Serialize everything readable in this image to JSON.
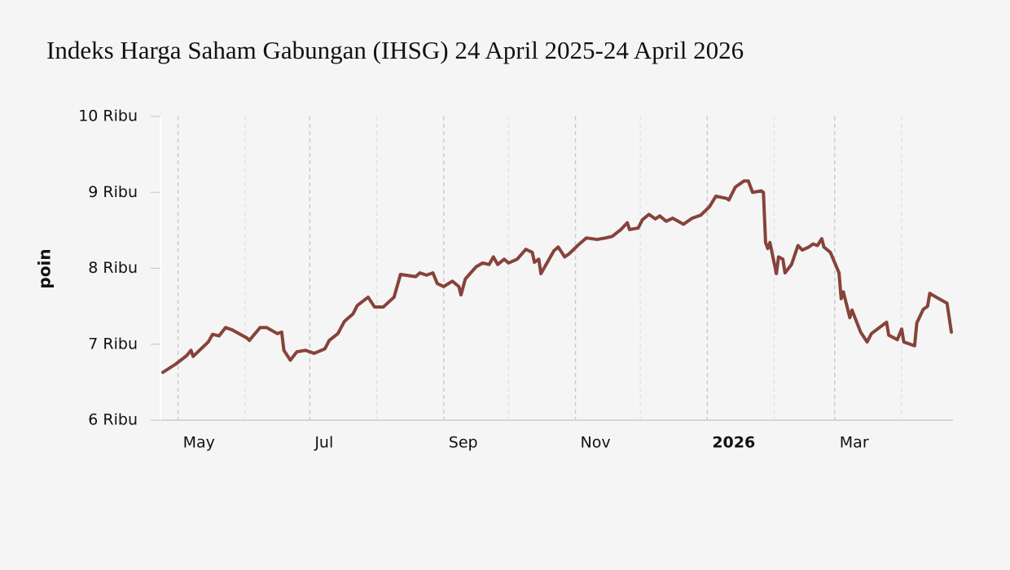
{
  "chart_data": {
    "type": "line",
    "title": "Indeks Harga Saham Gabungan (IHSG) 24 April 2025-24 April 2026",
    "y_label": "poin",
    "color": "#86433a",
    "xlim": [
      "2025-04-24",
      "2026-04-24"
    ],
    "xticks": [
      {
        "value": "2025-05-01",
        "label": "May"
      },
      {
        "value": "2025-07-01",
        "label": "Jul"
      },
      {
        "value": "2025-09-01",
        "label": "Sep"
      },
      {
        "value": "2025-11-01",
        "label": "Nov"
      },
      {
        "value": "2026-01-01",
        "label": "2026"
      },
      {
        "value": "2026-03-01",
        "label": "Mar"
      }
    ],
    "xminorticks": [
      "2025-06-01",
      "2025-08-01",
      "2025-10-01",
      "2025-12-01",
      "2026-02-01",
      "2026-04-01"
    ],
    "ylim": [
      6000,
      10000
    ],
    "yticks": [
      {
        "value": 6000,
        "label": "6 Ribu"
      },
      {
        "value": 7000,
        "label": "7 Ribu"
      },
      {
        "value": 8000,
        "label": "8 Ribu"
      },
      {
        "value": 9000,
        "label": "9 Ribu"
      },
      {
        "value": 10000,
        "label": "10 Ribu"
      }
    ],
    "x": [
      "2025-04-24",
      "2025-04-30",
      "2025-05-05",
      "2025-05-07",
      "2025-05-08",
      "2025-05-15",
      "2025-05-17",
      "2025-05-20",
      "2025-05-23",
      "2025-05-26",
      "2025-06-02",
      "2025-06-03",
      "2025-06-08",
      "2025-06-11",
      "2025-06-16",
      "2025-06-18",
      "2025-06-19",
      "2025-06-22",
      "2025-06-25",
      "2025-06-29",
      "2025-07-03",
      "2025-07-08",
      "2025-07-10",
      "2025-07-14",
      "2025-07-17",
      "2025-07-21",
      "2025-07-23",
      "2025-07-28",
      "2025-07-31",
      "2025-08-04",
      "2025-08-09",
      "2025-08-12",
      "2025-08-19",
      "2025-08-21",
      "2025-08-24",
      "2025-08-27",
      "2025-08-29",
      "2025-09-01",
      "2025-09-05",
      "2025-09-08",
      "2025-09-09",
      "2025-09-11",
      "2025-09-16",
      "2025-09-19",
      "2025-09-22",
      "2025-09-24",
      "2025-09-26",
      "2025-09-29",
      "2025-10-01",
      "2025-10-05",
      "2025-10-09",
      "2025-10-12",
      "2025-10-13",
      "2025-10-15",
      "2025-10-16",
      "2025-10-22",
      "2025-10-24",
      "2025-10-27",
      "2025-10-29",
      "2025-11-02",
      "2025-11-06",
      "2025-11-11",
      "2025-11-15",
      "2025-11-18",
      "2025-11-22",
      "2025-11-25",
      "2025-11-26",
      "2025-11-30",
      "2025-12-02",
      "2025-12-05",
      "2025-12-08",
      "2025-12-10",
      "2025-12-13",
      "2025-12-16",
      "2025-12-21",
      "2025-12-25",
      "2025-12-29",
      "2026-01-02",
      "2026-01-05",
      "2026-01-10",
      "2026-01-11",
      "2026-01-14",
      "2026-01-18",
      "2026-01-20",
      "2026-01-22",
      "2026-01-26",
      "2026-01-27",
      "2026-01-28",
      "2026-01-29",
      "2026-01-30",
      "2026-02-02",
      "2026-02-03",
      "2026-02-05",
      "2026-02-06",
      "2026-02-09",
      "2026-02-12",
      "2026-02-14",
      "2026-02-17",
      "2026-02-19",
      "2026-02-21",
      "2026-02-23",
      "2026-02-24",
      "2026-02-27",
      "2026-03-03",
      "2026-03-04",
      "2026-03-05",
      "2026-03-08",
      "2026-03-09",
      "2026-03-13",
      "2026-03-16",
      "2026-03-18",
      "2026-03-25",
      "2026-03-26",
      "2026-03-30",
      "2026-04-01",
      "2026-04-02",
      "2026-04-07",
      "2026-04-08",
      "2026-04-11",
      "2026-04-13",
      "2026-04-14",
      "2026-04-17",
      "2026-04-22",
      "2026-04-24"
    ],
    "values": [
      6630,
      6740,
      6850,
      6920,
      6840,
      7030,
      7130,
      7110,
      7220,
      7190,
      7080,
      7050,
      7220,
      7220,
      7140,
      7160,
      6920,
      6790,
      6900,
      6920,
      6880,
      6940,
      7050,
      7140,
      7300,
      7400,
      7510,
      7620,
      7490,
      7490,
      7620,
      7920,
      7890,
      7940,
      7910,
      7940,
      7800,
      7760,
      7830,
      7760,
      7650,
      7860,
      8020,
      8070,
      8050,
      8150,
      8050,
      8120,
      8070,
      8120,
      8250,
      8210,
      8080,
      8120,
      7930,
      8230,
      8280,
      8150,
      8190,
      8300,
      8400,
      8380,
      8400,
      8420,
      8510,
      8600,
      8510,
      8530,
      8640,
      8710,
      8650,
      8690,
      8620,
      8660,
      8580,
      8660,
      8700,
      8810,
      8950,
      8920,
      8900,
      9070,
      9150,
      9150,
      9000,
      9020,
      9000,
      8340,
      8260,
      8340,
      7930,
      8150,
      8120,
      7940,
      8050,
      8300,
      8240,
      8280,
      8320,
      8300,
      8390,
      8280,
      8210,
      7940,
      7600,
      7690,
      7350,
      7450,
      7160,
      7030,
      7140,
      7290,
      7120,
      7060,
      7200,
      7030,
      6980,
      7280,
      7460,
      7500,
      7670,
      7620,
      7540,
      7160
    ]
  }
}
